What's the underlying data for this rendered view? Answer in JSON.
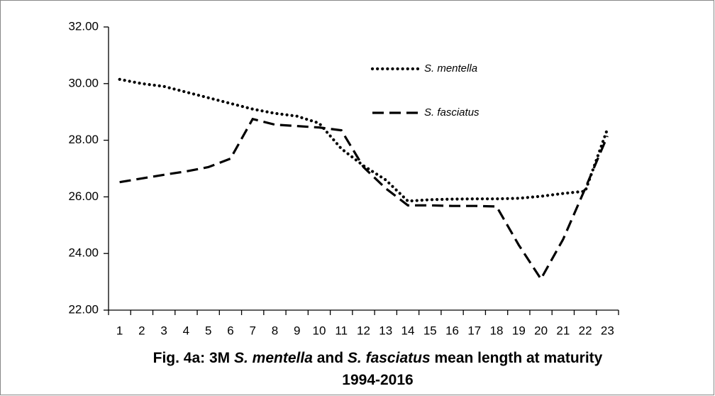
{
  "chart_data": {
    "type": "line",
    "title": [
      [
        "Fig. 4a: 3M ",
        "S. mentella",
        " and ",
        "S. fasciatus",
        " mean length at maturity"
      ],
      [
        "1994-2016"
      ]
    ],
    "categories": [
      1,
      2,
      3,
      4,
      5,
      6,
      7,
      8,
      9,
      10,
      11,
      12,
      13,
      14,
      15,
      16,
      17,
      18,
      19,
      20,
      21,
      22,
      23
    ],
    "series": [
      {
        "name": "S. mentella",
        "color": "#000000",
        "dash": "dotted",
        "values": [
          30.15,
          30.0,
          29.9,
          29.7,
          29.5,
          29.3,
          29.1,
          28.95,
          28.85,
          28.6,
          27.7,
          27.1,
          26.6,
          25.85,
          25.9,
          25.92,
          25.93,
          25.93,
          25.95,
          26.02,
          26.12,
          26.2,
          28.4
        ]
      },
      {
        "name": "S. fasciatus",
        "color": "#000000",
        "dash": "dashed",
        "values": [
          26.52,
          26.65,
          26.78,
          26.9,
          27.05,
          27.35,
          28.75,
          28.55,
          28.5,
          28.45,
          28.35,
          27.05,
          26.3,
          25.7,
          25.7,
          25.68,
          25.68,
          25.66,
          24.3,
          23.1,
          24.5,
          26.3,
          28.15
        ]
      }
    ],
    "ylim": [
      22,
      32
    ],
    "yticks": [
      {
        "value": 22,
        "label": "22.00"
      },
      {
        "value": 24,
        "label": "24.00"
      },
      {
        "value": 26,
        "label": "26.00"
      },
      {
        "value": 28,
        "label": "28.00"
      },
      {
        "value": 30,
        "label": "30.00"
      },
      {
        "value": 32,
        "label": "32.00"
      }
    ],
    "grid": false
  }
}
